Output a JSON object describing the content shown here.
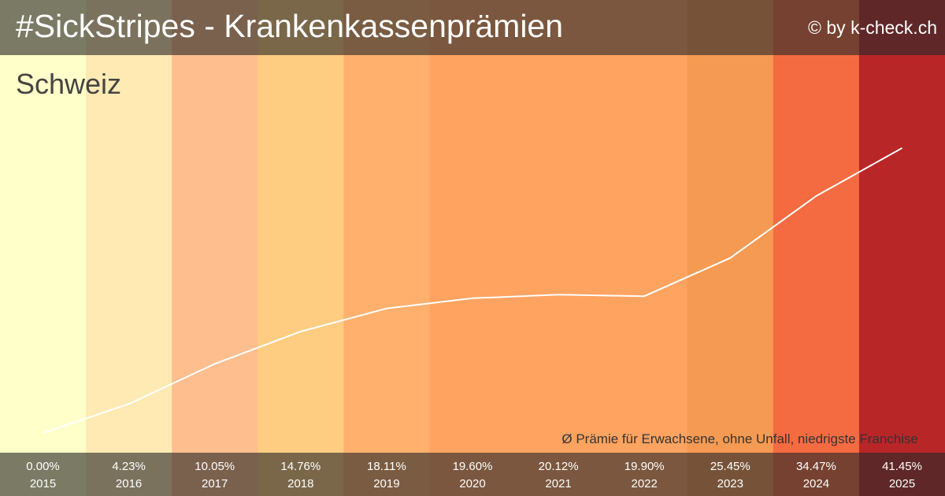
{
  "header": {
    "title": "#SickStripes - Krankenkassenprämien",
    "credit": "© by k-check.ch"
  },
  "chart_data": {
    "type": "line",
    "title": "#SickStripes - Krankenkassenprämien",
    "subtitle": "Schweiz",
    "note": "Ø Prämie für Erwachsene, ohne Unfall, niedrigste Franchise",
    "categories": [
      "2015",
      "2016",
      "2017",
      "2018",
      "2019",
      "2020",
      "2021",
      "2022",
      "2023",
      "2024",
      "2025"
    ],
    "values": [
      0.0,
      4.23,
      10.05,
      14.76,
      18.11,
      19.6,
      20.12,
      19.9,
      25.45,
      34.47,
      41.45
    ],
    "value_labels": [
      "0.00%",
      "4.23%",
      "10.05%",
      "14.76%",
      "18.11%",
      "19.60%",
      "20.12%",
      "19.90%",
      "25.45%",
      "34.47%",
      "41.45%"
    ],
    "ylim": [
      0,
      41.45
    ],
    "stripe_colors": [
      "#ffffc9",
      "#ffeab3",
      "#ffbe8d",
      "#ffcd81",
      "#ffb06c",
      "#ffa361",
      "#ffa361",
      "#ffa361",
      "#f59a52",
      "#f56b41",
      "#b92627"
    ],
    "line_color": "#ffffff",
    "grid": false,
    "legend": "none"
  }
}
